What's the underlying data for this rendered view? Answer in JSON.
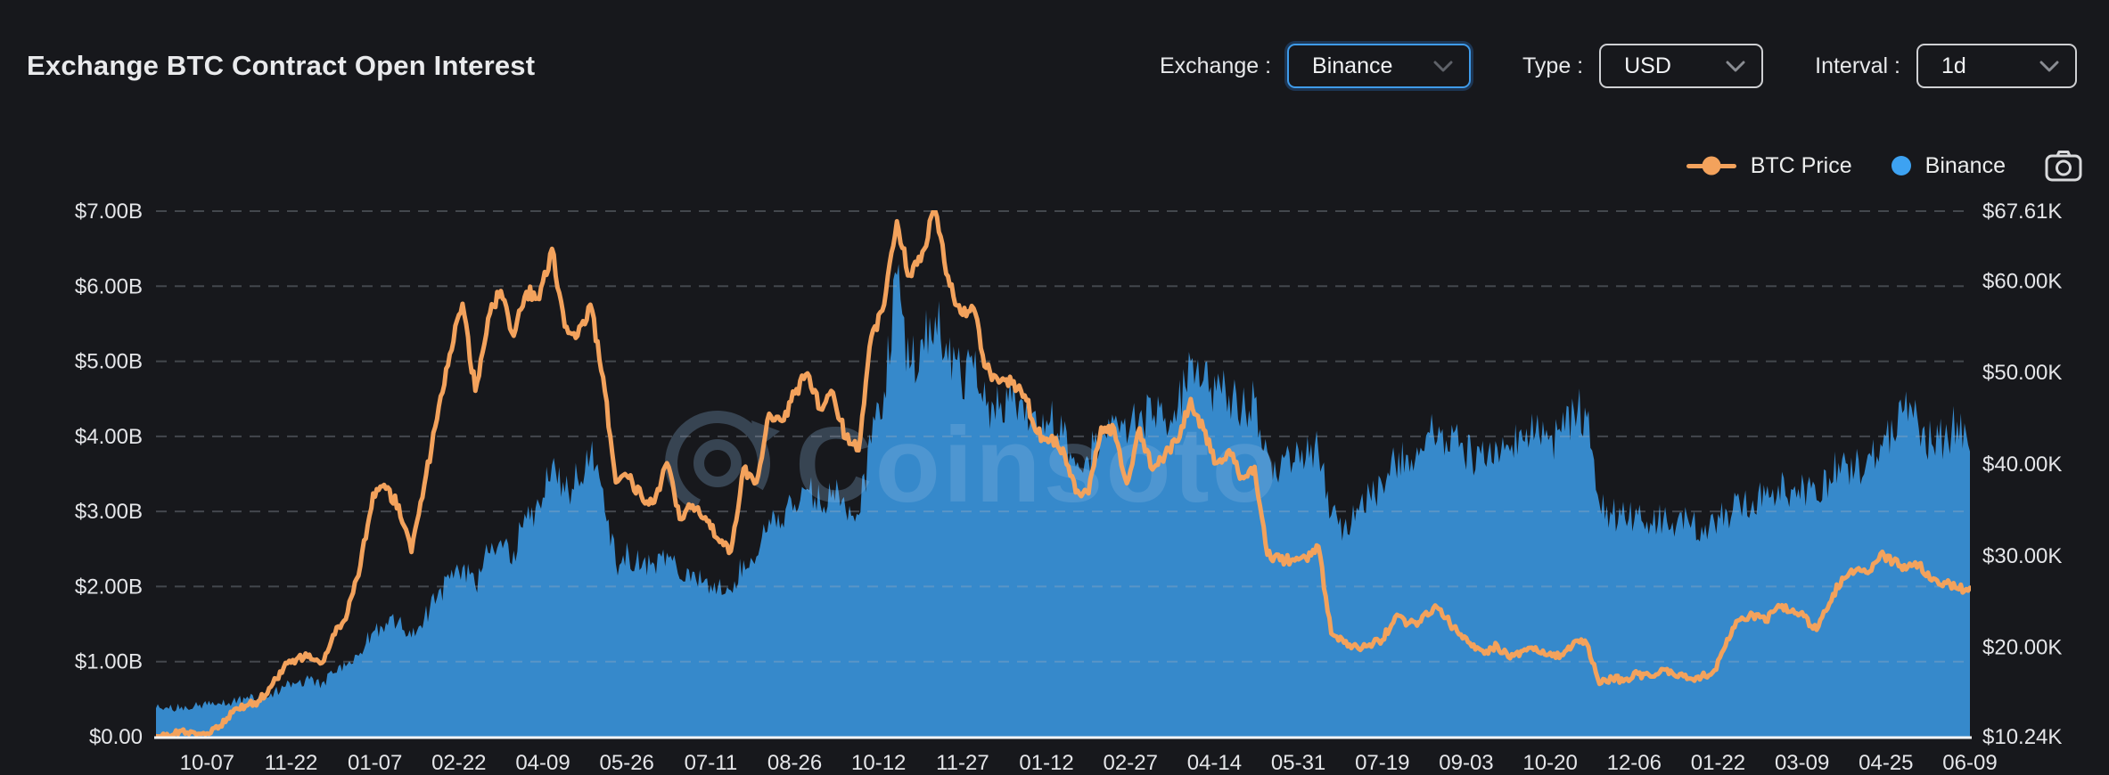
{
  "header": {
    "title": "Exchange BTC Contract Open Interest"
  },
  "controls": {
    "exchange": {
      "label": "Exchange :",
      "value": "Binance"
    },
    "type": {
      "label": "Type :",
      "value": "USD"
    },
    "interval": {
      "label": "Interval :",
      "value": "1d"
    }
  },
  "legend": {
    "items": [
      {
        "label": "BTC Price",
        "color": "#f3a25c",
        "marker": "line-dot"
      },
      {
        "label": "Binance",
        "color": "#3da2f2",
        "marker": "dot"
      }
    ]
  },
  "chart_data": {
    "type": "area+line",
    "title": "Exchange BTC Contract Open Interest",
    "watermark": "Coinsoto",
    "background_color": "#17181c",
    "gridline_color": "#aab3c0",
    "axis_line_color": "#f5f6f7",
    "legend_position": "top-right",
    "grid": "horizontal-dashed",
    "x_tick_labels": [
      "10-07",
      "11-22",
      "01-07",
      "02-22",
      "04-09",
      "05-26",
      "07-11",
      "08-26",
      "10-12",
      "11-27",
      "01-12",
      "02-27",
      "04-14",
      "05-31",
      "07-19",
      "09-03",
      "10-20",
      "12-06",
      "01-22",
      "03-09",
      "04-25",
      "06-09"
    ],
    "x_tick_day_step": 46,
    "day_start": -28,
    "day_step": 7,
    "day_end": 966,
    "left_axis": {
      "series": "Binance Open Interest",
      "min": 0,
      "max": 7,
      "unit": "USD billions",
      "tick_values": [
        7,
        6,
        5,
        4,
        3,
        2,
        1,
        0
      ],
      "tick_labels": [
        "$7.00B",
        "$6.00B",
        "$5.00B",
        "$4.00B",
        "$3.00B",
        "$2.00B",
        "$1.00B",
        "$0.00"
      ]
    },
    "right_axis": {
      "series": "BTC Price",
      "min": 10.24,
      "max": 67.61,
      "unit": "USD thousands",
      "tick_values": [
        67.61,
        60,
        50,
        40,
        30,
        20,
        10.24
      ],
      "tick_labels": [
        "$67.61K",
        "$60.00K",
        "$50.00K",
        "$40.00K",
        "$30.00K",
        "$20.00K",
        "$10.24K"
      ]
    },
    "series": [
      {
        "name": "Binance",
        "axis": "left",
        "kind": "area",
        "color": "#3da2f2",
        "fill_opacity": 0.82,
        "unit": "B USD",
        "values": [
          0.38,
          0.37,
          0.4,
          0.41,
          0.42,
          0.44,
          0.47,
          0.5,
          0.52,
          0.58,
          0.66,
          0.71,
          0.76,
          0.72,
          0.85,
          0.97,
          1.12,
          1.4,
          1.52,
          1.55,
          1.32,
          1.58,
          1.85,
          2.1,
          2.25,
          2.0,
          2.45,
          2.62,
          2.48,
          2.9,
          3.1,
          3.62,
          3.25,
          3.45,
          3.75,
          3.3,
          2.3,
          2.45,
          2.25,
          2.3,
          2.45,
          2.1,
          2.2,
          2.1,
          2.0,
          1.95,
          2.35,
          2.4,
          2.9,
          2.85,
          3.1,
          3.3,
          3.1,
          3.3,
          3.0,
          2.95,
          3.9,
          4.6,
          6.15,
          4.9,
          5.3,
          5.6,
          5.0,
          4.8,
          4.9,
          4.4,
          4.35,
          4.45,
          4.2,
          4.05,
          4.2,
          4.0,
          3.6,
          3.7,
          4.1,
          4.2,
          3.9,
          4.3,
          4.2,
          4.25,
          4.4,
          5.0,
          4.75,
          4.6,
          4.55,
          4.35,
          4.5,
          3.8,
          3.55,
          3.65,
          3.7,
          3.8,
          2.95,
          2.8,
          3.05,
          3.25,
          3.35,
          3.65,
          3.75,
          3.85,
          4.05,
          3.95,
          3.85,
          3.75,
          3.65,
          3.85,
          3.8,
          3.95,
          4.05,
          3.95,
          4.05,
          4.35,
          4.25,
          3.1,
          2.95,
          2.9,
          2.95,
          2.85,
          2.9,
          2.8,
          2.85,
          2.8,
          2.85,
          3.0,
          3.1,
          3.15,
          3.2,
          3.35,
          3.3,
          3.35,
          3.15,
          3.45,
          3.7,
          3.55,
          3.75,
          3.9,
          4.0,
          4.6,
          4.1,
          3.9,
          3.95,
          4.2,
          3.8
        ]
      },
      {
        "name": "BTC Price",
        "axis": "right",
        "kind": "line",
        "color": "#f3a25c",
        "unit": "K USD",
        "values": [
          10.3,
          10.2,
          10.9,
          10.7,
          10.6,
          11.4,
          12.9,
          13.6,
          14.1,
          15.7,
          17.8,
          18.7,
          19.2,
          18.3,
          21.4,
          23.8,
          28.9,
          36.8,
          37.3,
          35.5,
          30.4,
          37.7,
          44.9,
          52.0,
          57.5,
          48.0,
          55.9,
          58.9,
          54.0,
          58.8,
          58.0,
          63.5,
          55.0,
          54.0,
          57.4,
          49.5,
          38.0,
          38.5,
          36.5,
          35.8,
          40.1,
          34.0,
          35.5,
          34.2,
          31.8,
          30.5,
          39.5,
          38.0,
          45.5,
          44.7,
          47.7,
          49.9,
          46.0,
          47.8,
          42.8,
          41.5,
          53.9,
          57.4,
          66.5,
          60.6,
          63.2,
          67.61,
          60.5,
          56.5,
          57.0,
          50.5,
          48.9,
          48.8,
          47.5,
          43.4,
          42.7,
          41.7,
          36.9,
          36.8,
          44.0,
          43.9,
          37.9,
          43.9,
          39.4,
          41.1,
          42.5,
          47.1,
          43.8,
          40.1,
          41.5,
          38.6,
          39.7,
          30.1,
          29.5,
          29.6,
          29.8,
          31.0,
          21.5,
          20.5,
          20.1,
          20.3,
          20.8,
          23.3,
          22.6,
          22.8,
          24.3,
          23.2,
          21.4,
          20.1,
          19.3,
          20.2,
          18.8,
          19.6,
          20.0,
          19.2,
          19.2,
          20.6,
          20.4,
          16.0,
          16.6,
          16.5,
          17.1,
          16.8,
          17.6,
          16.8,
          16.6,
          16.8,
          17.5,
          20.9,
          23.0,
          23.6,
          22.8,
          24.6,
          23.9,
          23.4,
          21.9,
          24.8,
          27.6,
          28.3,
          28.1,
          30.2,
          29.4,
          28.5,
          29.1,
          27.3,
          27.1,
          26.4,
          26.5
        ]
      }
    ]
  }
}
